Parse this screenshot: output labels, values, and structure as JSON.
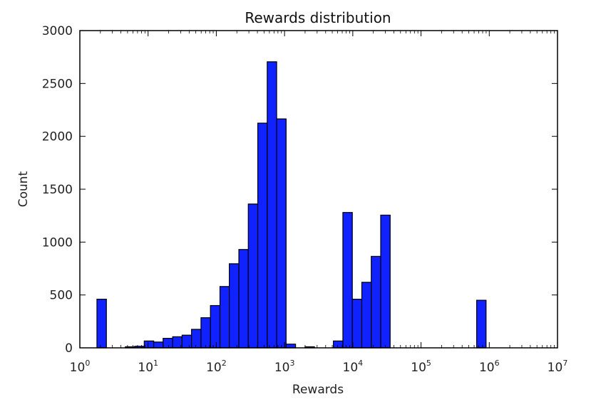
{
  "chart_data": {
    "type": "bar",
    "title": "Rewards distribution",
    "xlabel": "Rewards",
    "ylabel": "Count",
    "xscale": "log",
    "xlim": [
      1,
      10000000
    ],
    "ylim": [
      0,
      3000
    ],
    "grid": false,
    "legend": "none",
    "bar_color": "#0f22ff",
    "x_ticks": [
      {
        "value": 1,
        "base": "10",
        "exp": "0"
      },
      {
        "value": 10,
        "base": "10",
        "exp": "1"
      },
      {
        "value": 100,
        "base": "10",
        "exp": "2"
      },
      {
        "value": 1000,
        "base": "10",
        "exp": "3"
      },
      {
        "value": 10000,
        "base": "10",
        "exp": "4"
      },
      {
        "value": 100000,
        "base": "10",
        "exp": "5"
      },
      {
        "value": 1000000,
        "base": "10",
        "exp": "6"
      },
      {
        "value": 10000000,
        "base": "10",
        "exp": "7"
      }
    ],
    "y_ticks": [
      {
        "value": 0,
        "label": "0"
      },
      {
        "value": 500,
        "label": "500"
      },
      {
        "value": 1000,
        "label": "1000"
      },
      {
        "value": 1500,
        "label": "1500"
      },
      {
        "value": 2000,
        "label": "2000"
      },
      {
        "value": 2500,
        "label": "2500"
      },
      {
        "value": 3000,
        "label": "3000"
      }
    ],
    "bars": [
      {
        "x0": 1.78,
        "x1": 2.45,
        "value": 460
      },
      {
        "x0": 2.45,
        "x1": 3.37,
        "value": 0
      },
      {
        "x0": 3.37,
        "x1": 4.64,
        "value": 0
      },
      {
        "x0": 4.64,
        "x1": 6.38,
        "value": 10
      },
      {
        "x0": 6.38,
        "x1": 8.78,
        "value": 15
      },
      {
        "x0": 8.78,
        "x1": 12.1,
        "value": 65
      },
      {
        "x0": 12.1,
        "x1": 16.6,
        "value": 55
      },
      {
        "x0": 16.6,
        "x1": 22.9,
        "value": 90
      },
      {
        "x0": 22.9,
        "x1": 31.5,
        "value": 105
      },
      {
        "x0": 31.5,
        "x1": 43.3,
        "value": 120
      },
      {
        "x0": 43.3,
        "x1": 59.6,
        "value": 175
      },
      {
        "x0": 59.6,
        "x1": 82.0,
        "value": 285
      },
      {
        "x0": 82.0,
        "x1": 113,
        "value": 400
      },
      {
        "x0": 113,
        "x1": 155,
        "value": 580
      },
      {
        "x0": 155,
        "x1": 214,
        "value": 795
      },
      {
        "x0": 214,
        "x1": 294,
        "value": 930
      },
      {
        "x0": 294,
        "x1": 405,
        "value": 1360
      },
      {
        "x0": 405,
        "x1": 557,
        "value": 2125
      },
      {
        "x0": 557,
        "x1": 766,
        "value": 2705
      },
      {
        "x0": 766,
        "x1": 1054,
        "value": 2165
      },
      {
        "x0": 1054,
        "x1": 1450,
        "value": 35
      },
      {
        "x0": 1450,
        "x1": 1996,
        "value": 0
      },
      {
        "x0": 1996,
        "x1": 2746,
        "value": 10
      },
      {
        "x0": 2746,
        "x1": 3779,
        "value": 0
      },
      {
        "x0": 3779,
        "x1": 5200,
        "value": 0
      },
      {
        "x0": 5200,
        "x1": 7156,
        "value": 65
      },
      {
        "x0": 7156,
        "x1": 9846,
        "value": 1280
      },
      {
        "x0": 9846,
        "x1": 13550,
        "value": 460
      },
      {
        "x0": 13550,
        "x1": 18640,
        "value": 620
      },
      {
        "x0": 18640,
        "x1": 25650,
        "value": 865
      },
      {
        "x0": 25650,
        "x1": 35300,
        "value": 1255
      },
      {
        "x0": 653000,
        "x1": 898000,
        "value": 450
      }
    ]
  }
}
